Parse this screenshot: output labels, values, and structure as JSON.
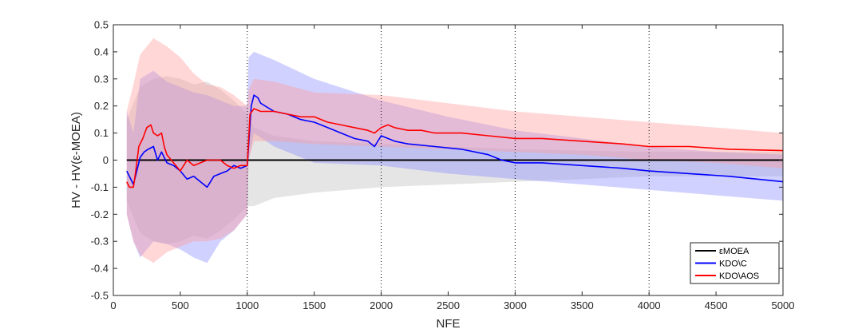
{
  "chart_data": {
    "type": "line",
    "xlabel": "NFE",
    "ylabel": "HV - HV(ε-MOEA)",
    "xlim": [
      0,
      5000
    ],
    "ylim": [
      -0.5,
      0.5
    ],
    "x_ticks": [
      0,
      500,
      1000,
      1500,
      2000,
      2500,
      3000,
      3500,
      4000,
      4500,
      5000
    ],
    "y_ticks": [
      -0.5,
      -0.4,
      -0.3,
      -0.2,
      -0.1,
      0,
      0.1,
      0.2,
      0.3,
      0.4,
      0.5
    ],
    "x_tick_labels": [
      "0",
      "500",
      "1000",
      "1500",
      "2000",
      "2500",
      "3000",
      "3500",
      "4000",
      "4500",
      "5000"
    ],
    "y_tick_labels": [
      "-0.5",
      "-0.4",
      "-0.3",
      "-0.2",
      "-0.1",
      "0",
      "0.1",
      "0.2",
      "0.3",
      "0.4",
      "0.5"
    ],
    "vertical_dotted_lines": [
      1000,
      2000,
      3000,
      4000
    ],
    "grid": false,
    "legend_position": "bottom-right",
    "series": [
      {
        "name": "εMOEA",
        "color": "#000000",
        "band_color": "#bdbdbd",
        "x": [
          100,
          5000
        ],
        "y": [
          0,
          0
        ],
        "band_x": [
          100,
          200,
          300,
          400,
          500,
          600,
          700,
          800,
          900,
          1000,
          1050,
          1200,
          1500,
          2000,
          2500,
          3000,
          3500,
          4000,
          4500,
          5000
        ],
        "band_upper": [
          0.15,
          0.27,
          0.3,
          0.31,
          0.3,
          0.28,
          0.29,
          0.26,
          0.22,
          0.17,
          0.12,
          0.09,
          0.07,
          0.06,
          0.05,
          0.04,
          0.035,
          0.03,
          0.03,
          0.03
        ],
        "band_lower": [
          -0.15,
          -0.27,
          -0.3,
          -0.31,
          -0.3,
          -0.28,
          -0.29,
          -0.26,
          -0.22,
          -0.17,
          -0.17,
          -0.14,
          -0.12,
          -0.1,
          -0.09,
          -0.08,
          -0.07,
          -0.06,
          -0.06,
          -0.06
        ]
      },
      {
        "name": "KDO\\C",
        "color": "#0000ff",
        "band_color": "#8c8cff",
        "x": [
          100,
          120,
          150,
          180,
          200,
          230,
          260,
          300,
          330,
          360,
          400,
          450,
          500,
          550,
          600,
          650,
          700,
          750,
          800,
          850,
          900,
          950,
          1000,
          1030,
          1050,
          1080,
          1100,
          1200,
          1300,
          1400,
          1500,
          1600,
          1700,
          1800,
          1900,
          1950,
          2000,
          2050,
          2100,
          2200,
          2400,
          2600,
          2800,
          2900,
          3000,
          3200,
          3500,
          3800,
          4000,
          4300,
          4600,
          4800,
          5000
        ],
        "y": [
          -0.04,
          -0.06,
          -0.09,
          -0.03,
          0.01,
          0.03,
          0.04,
          0.05,
          0.0,
          0.03,
          -0.01,
          -0.02,
          -0.04,
          -0.07,
          -0.06,
          -0.08,
          -0.1,
          -0.06,
          -0.05,
          -0.04,
          -0.02,
          -0.03,
          -0.02,
          0.2,
          0.24,
          0.23,
          0.21,
          0.18,
          0.17,
          0.15,
          0.14,
          0.12,
          0.1,
          0.08,
          0.07,
          0.05,
          0.09,
          0.08,
          0.07,
          0.06,
          0.05,
          0.04,
          0.02,
          0.0,
          -0.01,
          -0.01,
          -0.02,
          -0.03,
          -0.04,
          -0.05,
          -0.06,
          -0.07,
          -0.08
        ],
        "band_x": [
          100,
          150,
          200,
          300,
          400,
          500,
          600,
          700,
          800,
          900,
          1000,
          1010,
          1050,
          1200,
          1500,
          2000,
          2500,
          3000,
          3500,
          4000,
          4500,
          5000
        ],
        "band_upper": [
          0.18,
          0.1,
          0.3,
          0.33,
          0.29,
          0.27,
          0.25,
          0.24,
          0.22,
          0.2,
          0.2,
          0.38,
          0.4,
          0.37,
          0.3,
          0.22,
          0.16,
          0.11,
          0.08,
          0.05,
          0.03,
          0.02
        ],
        "band_lower": [
          -0.2,
          -0.3,
          -0.36,
          -0.3,
          -0.31,
          -0.33,
          -0.36,
          -0.38,
          -0.3,
          -0.26,
          -0.2,
          0.0,
          0.1,
          0.05,
          -0.01,
          -0.02,
          -0.05,
          -0.07,
          -0.09,
          -0.11,
          -0.13,
          -0.15
        ]
      },
      {
        "name": "KDO\\AOS",
        "color": "#ff0000",
        "band_color": "#ff9c9c",
        "x": [
          100,
          120,
          150,
          170,
          190,
          220,
          250,
          280,
          300,
          330,
          360,
          380,
          400,
          450,
          500,
          550,
          600,
          650,
          700,
          800,
          850,
          900,
          950,
          1000,
          1020,
          1050,
          1100,
          1200,
          1300,
          1400,
          1500,
          1600,
          1700,
          1800,
          1900,
          1950,
          2000,
          2050,
          2100,
          2200,
          2300,
          2400,
          2600,
          2800,
          3000,
          3200,
          3500,
          3800,
          4000,
          4300,
          4600,
          5000
        ],
        "y": [
          -0.08,
          -0.1,
          -0.1,
          -0.03,
          0.05,
          0.08,
          0.12,
          0.13,
          0.1,
          0.09,
          0.1,
          0.05,
          0.02,
          -0.01,
          -0.04,
          0.0,
          -0.02,
          -0.01,
          0.0,
          0.0,
          -0.02,
          -0.03,
          -0.02,
          -0.02,
          0.17,
          0.19,
          0.18,
          0.18,
          0.17,
          0.16,
          0.16,
          0.14,
          0.13,
          0.12,
          0.11,
          0.1,
          0.12,
          0.13,
          0.12,
          0.11,
          0.11,
          0.1,
          0.1,
          0.09,
          0.08,
          0.08,
          0.07,
          0.06,
          0.05,
          0.05,
          0.04,
          0.035
        ],
        "band_x": [
          100,
          150,
          200,
          300,
          400,
          500,
          600,
          700,
          800,
          900,
          1000,
          1010,
          1050,
          1200,
          1500,
          2000,
          2500,
          3000,
          3500,
          4000,
          4500,
          5000
        ],
        "band_upper": [
          0.18,
          0.28,
          0.39,
          0.45,
          0.42,
          0.38,
          0.32,
          0.28,
          0.27,
          0.24,
          0.2,
          0.26,
          0.3,
          0.29,
          0.25,
          0.24,
          0.21,
          0.18,
          0.16,
          0.14,
          0.12,
          0.1
        ],
        "band_lower": [
          -0.2,
          -0.3,
          -0.35,
          -0.38,
          -0.34,
          -0.32,
          -0.3,
          -0.3,
          -0.29,
          -0.26,
          -0.2,
          0.0,
          0.07,
          0.07,
          0.06,
          0.05,
          0.04,
          0.03,
          0.02,
          0.0,
          -0.01,
          -0.03
        ]
      }
    ]
  }
}
